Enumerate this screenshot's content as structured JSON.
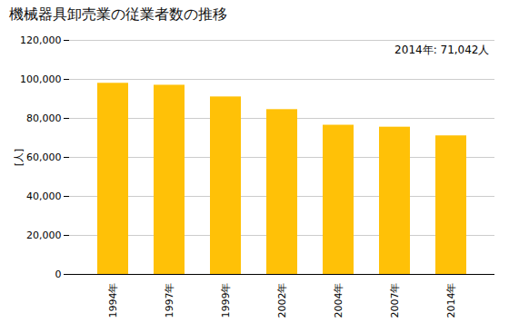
{
  "chart_data": {
    "type": "bar",
    "title": "機械器具卸売業の従業者数の推移",
    "ylabel": "[人]",
    "annotation": "2014年: 71,042人",
    "categories": [
      "1994年",
      "1997年",
      "1999年",
      "2002年",
      "2004年",
      "2007年",
      "2014年"
    ],
    "values": [
      98000,
      97000,
      91000,
      84500,
      76500,
      75500,
      71042
    ],
    "color": "#FFC107",
    "ylim": [
      0,
      120000
    ],
    "yticks": [
      0,
      {
        "value": 20000,
        "label": "20,000"
      },
      {
        "value": 40000,
        "label": "40,000"
      },
      {
        "value": 60000,
        "label": "60,000"
      },
      {
        "value": 80000,
        "label": "80,000"
      },
      {
        "value": 100000,
        "label": "100,000"
      },
      {
        "value": 120000,
        "label": "120,000"
      }
    ],
    "grid": true
  }
}
